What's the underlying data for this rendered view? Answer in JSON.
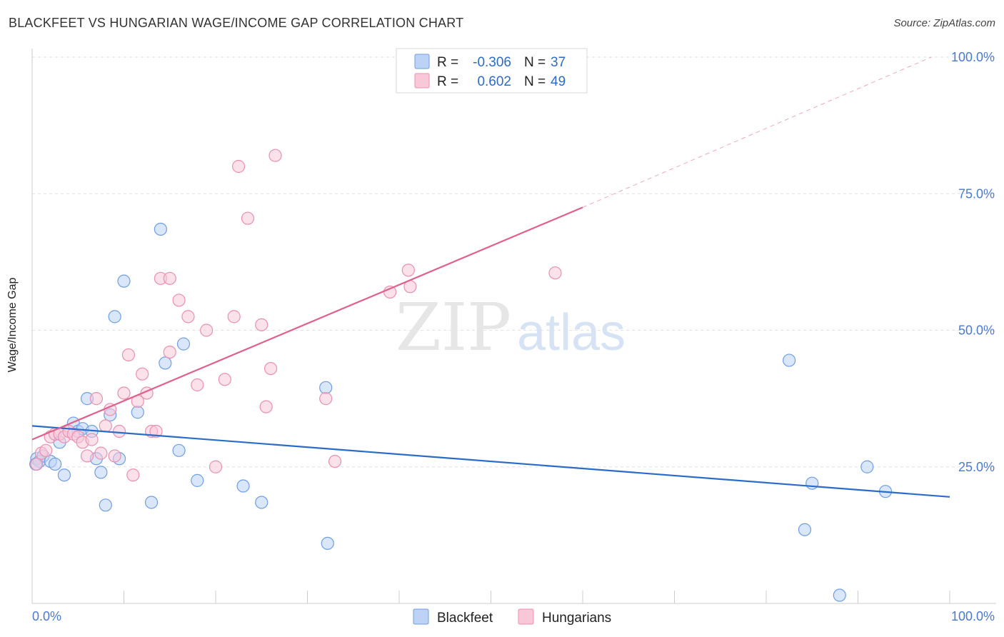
{
  "header": {
    "title": "BLACKFEET VS HUNGARIAN WAGE/INCOME GAP CORRELATION CHART",
    "source": "Source: ZipAtlas.com"
  },
  "watermark": {
    "zip": "ZIP",
    "atlas": "atlas"
  },
  "chart_data": {
    "type": "scatter",
    "title": "BLACKFEET VS HUNGARIAN WAGE/INCOME GAP CORRELATION CHART",
    "ylabel": "Wage/Income Gap",
    "xlabel": "",
    "xlim": [
      0,
      100
    ],
    "ylim": [
      0,
      100
    ],
    "x_tick_labels": [
      "0.0%",
      "100.0%"
    ],
    "y_ticks": [
      {
        "value": 25,
        "label": "25.0%"
      },
      {
        "value": 50,
        "label": "50.0%"
      },
      {
        "value": 75,
        "label": "75.0%"
      },
      {
        "value": 100,
        "label": "100.0%"
      }
    ],
    "grid": true,
    "legend_position": "bottom-center",
    "stats": [
      {
        "r_label": "R =",
        "r_value": "-0.306",
        "n_label": "N =",
        "n_value": "37"
      },
      {
        "r_label": "R =",
        "r_value": " 0.602",
        "n_label": "N =",
        "n_value": "49"
      }
    ],
    "series": [
      {
        "name": "Blackfeet",
        "color": "#6f9ee6",
        "fill": "#bcd3f5",
        "line_color": "#2b6cc8",
        "trend": {
          "x0": 0,
          "y0": 32.5,
          "x1": 100,
          "y1": 19.5
        },
        "points": [
          [
            0.5,
            26.5
          ],
          [
            0.8,
            26
          ],
          [
            1.2,
            27
          ],
          [
            2,
            26
          ],
          [
            2.5,
            25.5
          ],
          [
            3,
            29.5
          ],
          [
            3.5,
            23.5
          ],
          [
            4.5,
            33
          ],
          [
            5,
            31.5
          ],
          [
            5.5,
            32
          ],
          [
            6,
            37.5
          ],
          [
            6.5,
            31.5
          ],
          [
            7,
            26.5
          ],
          [
            7.5,
            24
          ],
          [
            8,
            18
          ],
          [
            8.5,
            34.5
          ],
          [
            9,
            52.5
          ],
          [
            9.5,
            26.5
          ],
          [
            10,
            59
          ],
          [
            11.5,
            35
          ],
          [
            13,
            18.5
          ],
          [
            14,
            68.5
          ],
          [
            14.5,
            44
          ],
          [
            16,
            28
          ],
          [
            16.5,
            47.5
          ],
          [
            18,
            22.5
          ],
          [
            23,
            21.5
          ],
          [
            25,
            18.5
          ],
          [
            32,
            39.5
          ],
          [
            32.2,
            11
          ],
          [
            82.5,
            44.5
          ],
          [
            85,
            22
          ],
          [
            84.2,
            13.5
          ],
          [
            88,
            1.5
          ],
          [
            91,
            25
          ],
          [
            93,
            20.5
          ],
          [
            0.4,
            25.5
          ]
        ]
      },
      {
        "name": "Hungarians",
        "color": "#eb8fb0",
        "fill": "#f8c8d9",
        "line_color": "#e0608c",
        "trend": {
          "x0": 0,
          "y0": 30,
          "x1": 60,
          "y1": 72.5
        },
        "trend_dashed": {
          "x0": 60,
          "y0": 72.5,
          "x1": 98,
          "y1": 100
        },
        "points": [
          [
            0.5,
            25.5
          ],
          [
            1,
            27.5
          ],
          [
            1.5,
            28
          ],
          [
            2,
            30.5
          ],
          [
            2.5,
            31
          ],
          [
            3,
            31
          ],
          [
            3.5,
            30.5
          ],
          [
            4,
            31.5
          ],
          [
            4.5,
            31
          ],
          [
            5,
            30.5
          ],
          [
            5.5,
            29.5
          ],
          [
            6,
            27
          ],
          [
            6.5,
            30
          ],
          [
            7,
            37.5
          ],
          [
            7.5,
            27.5
          ],
          [
            8,
            32.5
          ],
          [
            8.5,
            35.5
          ],
          [
            9,
            27
          ],
          [
            9.5,
            31.5
          ],
          [
            10,
            38.5
          ],
          [
            10.5,
            45.5
          ],
          [
            11,
            23.5
          ],
          [
            11.5,
            37
          ],
          [
            12,
            42
          ],
          [
            12.5,
            38.5
          ],
          [
            13,
            31.5
          ],
          [
            13.5,
            31.5
          ],
          [
            14,
            59.5
          ],
          [
            15,
            59.5
          ],
          [
            16,
            55.5
          ],
          [
            17,
            52.5
          ],
          [
            18,
            40
          ],
          [
            19,
            50
          ],
          [
            20,
            25
          ],
          [
            21,
            41
          ],
          [
            22,
            52.5
          ],
          [
            22.5,
            80
          ],
          [
            23.5,
            70.5
          ],
          [
            25,
            51
          ],
          [
            25.5,
            36
          ],
          [
            26,
            43
          ],
          [
            26.5,
            82
          ],
          [
            32,
            37.5
          ],
          [
            33,
            26
          ],
          [
            39,
            57
          ],
          [
            41,
            61
          ],
          [
            41.2,
            58
          ],
          [
            57,
            60.5
          ],
          [
            15,
            46
          ]
        ]
      }
    ]
  }
}
